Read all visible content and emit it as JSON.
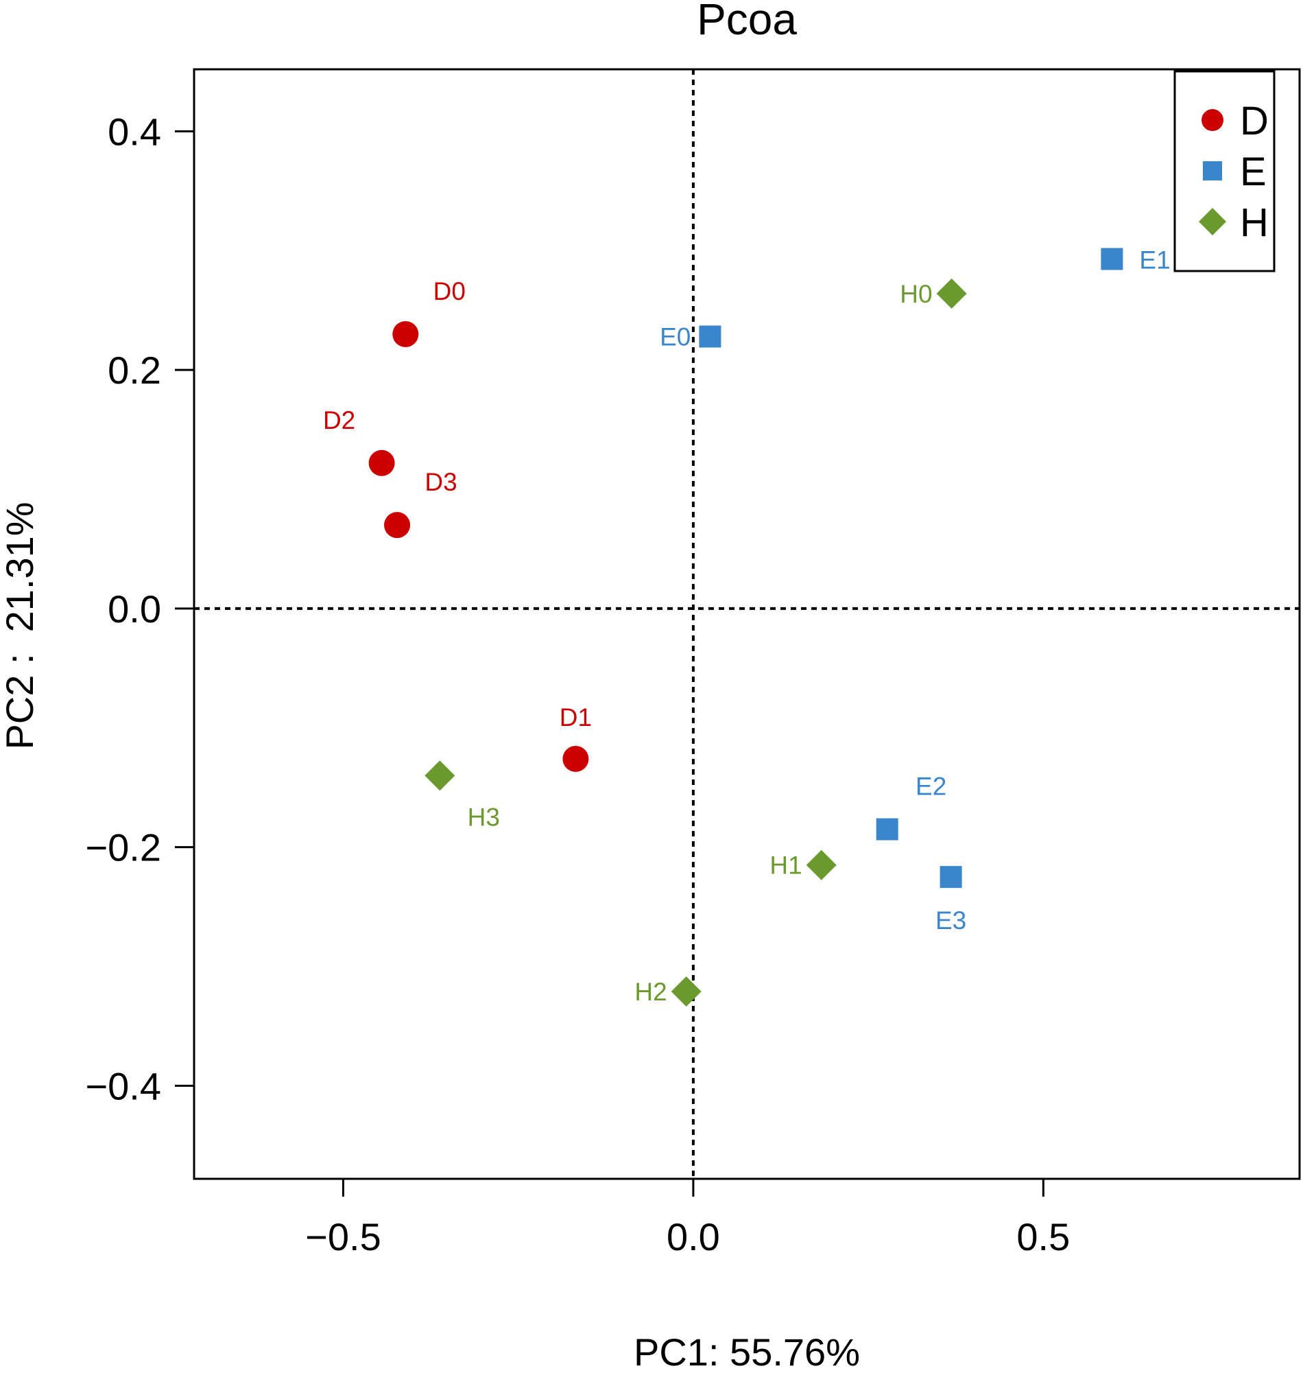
{
  "chart_data": {
    "type": "scatter",
    "title": "Pcoa",
    "xlabel": "PC1: 55.76%",
    "ylabel": "PC2 :  21.31%",
    "xlim": [
      -0.713,
      0.866
    ],
    "ylim": [
      -0.478,
      0.452
    ],
    "x_ticks": [
      -0.5,
      0.0,
      0.5
    ],
    "x_tick_labels": [
      "−0.5",
      "0.0",
      "0.5"
    ],
    "y_ticks": [
      -0.4,
      -0.2,
      0.0,
      0.2,
      0.4
    ],
    "y_tick_labels": [
      "−0.4",
      "−0.2",
      "0.0",
      "0.2",
      "0.4"
    ],
    "reference_lines": {
      "x": 0,
      "y": 0,
      "style": "dotted"
    },
    "legend": {
      "placement": "top-right",
      "entries": [
        {
          "name": "D",
          "marker": "circle",
          "color": "#cc0000"
        },
        {
          "name": "E",
          "marker": "square",
          "color": "#3a86cc"
        },
        {
          "name": "H",
          "marker": "diamond",
          "color": "#6a9a2e"
        }
      ]
    },
    "series": [
      {
        "name": "D",
        "marker": "circle",
        "color": "#cc0000",
        "points": [
          {
            "label": "D0",
            "x": -0.411,
            "y": 0.23,
            "label_pos": "above-right"
          },
          {
            "label": "D1",
            "x": -0.168,
            "y": -0.126,
            "label_pos": "above"
          },
          {
            "label": "D2",
            "x": -0.445,
            "y": 0.122,
            "label_pos": "above-left"
          },
          {
            "label": "D3",
            "x": -0.423,
            "y": 0.07,
            "label_pos": "above-right"
          }
        ]
      },
      {
        "name": "E",
        "marker": "square",
        "color": "#3a86cc",
        "points": [
          {
            "label": "E0",
            "x": 0.024,
            "y": 0.228,
            "label_pos": "left"
          },
          {
            "label": "E1",
            "x": 0.598,
            "y": 0.293,
            "label_pos": "right"
          },
          {
            "label": "E2",
            "x": 0.277,
            "y": -0.185,
            "label_pos": "above-right"
          },
          {
            "label": "E3",
            "x": 0.368,
            "y": -0.225,
            "label_pos": "below"
          }
        ]
      },
      {
        "name": "H",
        "marker": "diamond",
        "color": "#6a9a2e",
        "points": [
          {
            "label": "H0",
            "x": 0.369,
            "y": 0.264,
            "label_pos": "left"
          },
          {
            "label": "H1",
            "x": 0.183,
            "y": -0.215,
            "label_pos": "left"
          },
          {
            "label": "H2",
            "x": -0.01,
            "y": -0.321,
            "label_pos": "left"
          },
          {
            "label": "H3",
            "x": -0.362,
            "y": -0.14,
            "label_pos": "below-right"
          }
        ]
      }
    ]
  }
}
